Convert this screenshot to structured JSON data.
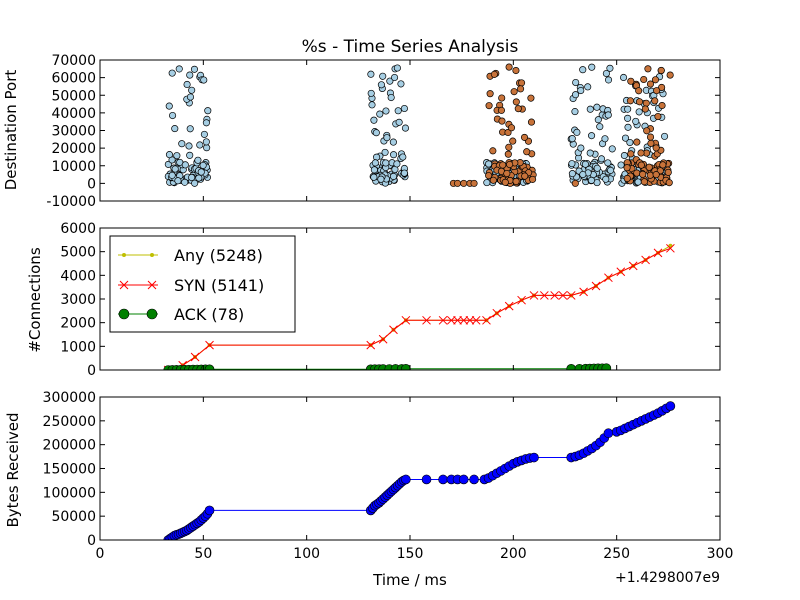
{
  "chart_data": [
    {
      "type": "scatter",
      "title": "%s - Time Series Analysis",
      "ylabel": "Destination Port",
      "xlim": [
        0,
        300
      ],
      "ylim": [
        -10000,
        70000
      ],
      "yticks": [
        -10000,
        0,
        10000,
        20000,
        30000,
        40000,
        50000,
        60000,
        70000
      ],
      "grid": false,
      "legend": "none",
      "colors": {
        "series_a": "#a6cee3",
        "series_b": "#c8733a"
      },
      "series": [
        {
          "color": "#a6cee3",
          "clusters": [
            {
              "x_range": [
                33,
                53
              ],
              "max_port": 66000
            },
            {
              "x_range": [
                131,
                148
              ],
              "max_port": 66000
            },
            {
              "x_range": [
                187,
                207
              ],
              "max_port": 12000
            },
            {
              "x_range": [
                228,
                248
              ],
              "max_port": 66000
            },
            {
              "x_range": [
                252,
                275
              ],
              "max_port": 64000
            }
          ]
        },
        {
          "color": "#c8733a",
          "clusters": [
            {
              "x_range": [
                188,
                210
              ],
              "max_port": 66000
            },
            {
              "x_range": [
                255,
                276
              ],
              "max_port": 66000
            }
          ],
          "points": [
            [
              171,
              0
            ],
            [
              173,
              0
            ],
            [
              176,
              0
            ],
            [
              179,
              0
            ],
            [
              181,
              0
            ],
            [
              230,
              0
            ]
          ]
        }
      ]
    },
    {
      "type": "line",
      "ylabel": "#Connections",
      "xlim": [
        0,
        300
      ],
      "ylim": [
        0,
        6000
      ],
      "yticks": [
        0,
        1000,
        2000,
        3000,
        4000,
        5000,
        6000
      ],
      "grid": false,
      "legend": "top-left",
      "series": [
        {
          "name": "Any (5248)",
          "color": "#bfbf00",
          "marker": "dot",
          "x": [
            33,
            40,
            46,
            53,
            131,
            137,
            142,
            148,
            187,
            192,
            198,
            204,
            210,
            228,
            234,
            240,
            246,
            252,
            258,
            264,
            270,
            276
          ],
          "y": [
            0,
            200,
            550,
            1050,
            1050,
            1300,
            1700,
            2100,
            2100,
            2400,
            2700,
            2950,
            3150,
            3150,
            3300,
            3550,
            3900,
            4150,
            4400,
            4650,
            4950,
            5248
          ]
        },
        {
          "name": "SYN (5141)",
          "color": "#ff0000",
          "marker": "x",
          "x": [
            33,
            40,
            46,
            53,
            131,
            137,
            142,
            148,
            158,
            166,
            170,
            173,
            176,
            179,
            182,
            187,
            192,
            198,
            204,
            210,
            215,
            220,
            224,
            228,
            234,
            240,
            246,
            252,
            258,
            264,
            270,
            276
          ],
          "y": [
            0,
            200,
            550,
            1050,
            1050,
            1300,
            1700,
            2100,
            2100,
            2100,
            2100,
            2100,
            2100,
            2100,
            2100,
            2100,
            2400,
            2700,
            2950,
            3150,
            3150,
            3150,
            3150,
            3150,
            3300,
            3550,
            3900,
            4150,
            4400,
            4650,
            4950,
            5141
          ]
        },
        {
          "name": "ACK (78)",
          "color": "#008000",
          "marker": "circle",
          "x": [
            33,
            35,
            37,
            39,
            41,
            43,
            45,
            47,
            49,
            51,
            53,
            131,
            133,
            135,
            137,
            140,
            143,
            146,
            148,
            228,
            232,
            235,
            237,
            239,
            241,
            243,
            245
          ],
          "y": [
            0,
            3,
            6,
            9,
            12,
            15,
            18,
            21,
            24,
            27,
            30,
            30,
            33,
            36,
            39,
            42,
            45,
            48,
            50,
            50,
            53,
            56,
            60,
            65,
            70,
            74,
            78
          ]
        }
      ]
    },
    {
      "type": "line",
      "ylabel": "Bytes Received",
      "xlabel": "Time / ms",
      "x_offset_label": "+1.4298007e9",
      "xlim": [
        0,
        300
      ],
      "ylim": [
        0,
        300000
      ],
      "xticks": [
        0,
        50,
        100,
        150,
        200,
        250,
        300
      ],
      "yticks": [
        0,
        50000,
        100000,
        150000,
        200000,
        250000,
        300000
      ],
      "grid": false,
      "legend": "none",
      "series": [
        {
          "color": "#0000ff",
          "marker": "circle",
          "x": [
            33,
            34,
            35,
            36,
            37,
            38,
            39,
            40,
            41,
            42,
            43,
            44,
            45,
            46,
            47,
            48,
            49,
            50,
            51,
            52,
            53,
            131,
            132,
            133,
            134,
            135,
            136,
            137,
            138,
            139,
            140,
            141,
            142,
            143,
            144,
            145,
            146,
            147,
            148,
            158,
            166,
            170,
            173,
            176,
            181,
            186,
            188,
            190,
            192,
            194,
            196,
            198,
            200,
            202,
            204,
            206,
            208,
            210,
            228,
            230,
            232,
            234,
            236,
            238,
            240,
            242,
            244,
            246,
            250,
            252,
            254,
            256,
            258,
            260,
            262,
            264,
            266,
            268,
            270,
            272,
            274,
            276
          ],
          "y": [
            0,
            3000,
            6000,
            9000,
            11000,
            12000,
            14000,
            16000,
            18000,
            20000,
            23000,
            26000,
            29000,
            32000,
            35000,
            38000,
            42000,
            46000,
            50000,
            55000,
            62000,
            62000,
            67000,
            72000,
            75000,
            78000,
            82000,
            86000,
            90000,
            94000,
            98000,
            102000,
            106000,
            110000,
            114000,
            118000,
            122000,
            125000,
            127000,
            127000,
            127000,
            127000,
            127000,
            127000,
            127000,
            127000,
            130000,
            135000,
            140000,
            145000,
            150000,
            155000,
            160000,
            164000,
            167000,
            170000,
            172000,
            173000,
            173000,
            175000,
            178000,
            182000,
            187000,
            192000,
            198000,
            205000,
            214000,
            224000,
            227000,
            230000,
            234000,
            238000,
            242000,
            246000,
            250000,
            254000,
            258000,
            262000,
            266000,
            271000,
            276000,
            281000
          ]
        }
      ]
    }
  ]
}
